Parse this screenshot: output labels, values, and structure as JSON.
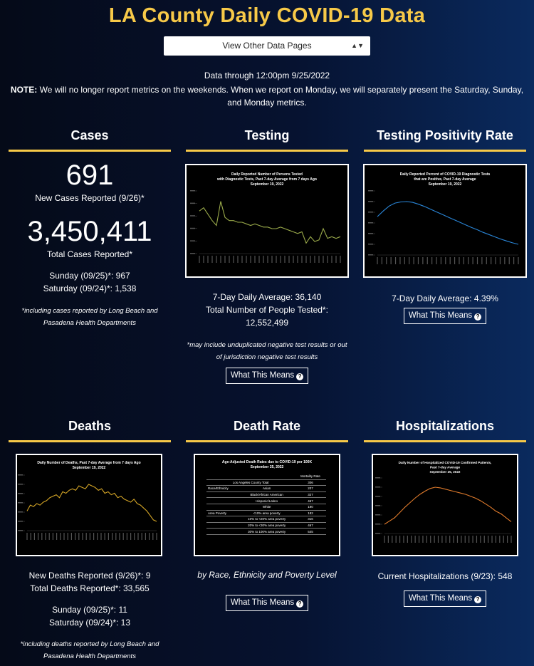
{
  "title": "LA County Daily COVID-19 Data",
  "nav_select": {
    "selected": "View Other Data Pages"
  },
  "date_line": "Data through 12:00pm 9/25/2022",
  "note": {
    "label": "NOTE:",
    "text": " We will no longer report metrics on the weekends. When we report on Monday, we will separately present the Saturday, Sunday, and Monday metrics."
  },
  "what_this_means": "What This Means",
  "cases": {
    "title": "Cases",
    "new_value": "691",
    "new_label": "New Cases Reported (9/26)*",
    "total_value": "3,450,411",
    "total_label": "Total Cases Reported*",
    "sunday": "Sunday (09/25)*: 967",
    "saturday": "Saturday (09/24)*: 1,538",
    "footnote": "*including cases reported by Long Beach and Pasadena Health Departments"
  },
  "testing": {
    "title": "Testing",
    "chart_title_1": "Daily Reported Number of Persons Tested",
    "chart_title_2": "with Diagnostic Tests, Past 7-day Average from 7 days Ago",
    "chart_title_3": "September 19, 2022",
    "avg": "7-Day Daily Average: 36,140",
    "total_label": "Total Number of People Tested*:",
    "total_value": "12,552,499",
    "footnote": "*may include unduplicated negative test results or out of jurisdiction negative test results"
  },
  "positivity": {
    "title": "Testing Positivity Rate",
    "chart_title_1": "Daily Reported Percent of COVID-19 Diagnostic Tests",
    "chart_title_2": "that are Positive, Past 7-day Average",
    "chart_title_3": "September 19, 2022",
    "avg": "7-Day Daily Average: 4.39%"
  },
  "deaths": {
    "title": "Deaths",
    "chart_title_1": "Daily Number of Deaths, Past 7-day Average from 7 days Ago",
    "chart_title_2": "September 19, 2022",
    "new": "New Deaths Reported (9/26)*: 9",
    "total": "Total Deaths Reported*: 33,565",
    "sunday": "Sunday (09/25)*: 11",
    "saturday": "Saturday (09/24)*: 13",
    "footnote": "*including deaths reported by Long Beach and Pasadena Health Departments"
  },
  "death_rate": {
    "title": "Death Rate",
    "chart_title_1": "Age-Adjusted Death Rates due to COVID-19 per 100K",
    "chart_title_2": "September 25, 2022",
    "header": "Mortality Rate",
    "total_label": "Los Angeles County Total",
    "total_value": "306",
    "rows": [
      {
        "group": "Race/Ethnicity",
        "label": "Asian",
        "value": "207"
      },
      {
        "group": "",
        "label": "Black/African American",
        "value": "327"
      },
      {
        "group": "",
        "label": "Hispanic/Latino",
        "value": "467"
      },
      {
        "group": "",
        "label": "White",
        "value": "190"
      },
      {
        "group": "Area Poverty",
        "label": "<10% area poverty",
        "value": "182"
      },
      {
        "group": "",
        "label": "10% to <20% area poverty",
        "value": "316"
      },
      {
        "group": "",
        "label": "20% to <30% area poverty",
        "value": "467"
      },
      {
        "group": "",
        "label": "30% to 100% area poverty",
        "value": "545"
      }
    ],
    "caption": "by Race, Ethnicity and Poverty Level"
  },
  "hospitalizations": {
    "title": "Hospitalizations",
    "chart_title_1": "Daily Number of Hospitalized COVID-19 Confirmed Patients,",
    "chart_title_2": "Past 7-day Average",
    "chart_title_3": "September 25, 2022",
    "current": "Current Hospitalizations (9/23): 548"
  },
  "colors": {
    "accent": "#f7c948",
    "testing_line": "#9aaa4a",
    "positivity_line": "#2a86d8",
    "deaths_line": "#d4a526",
    "hosp_line": "#e07b2c"
  },
  "chart_data": [
    {
      "type": "line",
      "title": "Daily Reported Number of Persons Tested with Diagnostic Tests, Past 7-day Average from 7 days Ago",
      "values": [
        56,
        58,
        54,
        50,
        47,
        62,
        52,
        50,
        50,
        49,
        49,
        48,
        47,
        48,
        47,
        46,
        46,
        45,
        45,
        46,
        45,
        44,
        43,
        42,
        43,
        36,
        40,
        37,
        38,
        45,
        39,
        40,
        39,
        40
      ]
    },
    {
      "type": "line",
      "title": "Daily Reported Percent of COVID-19 Diagnostic Tests that are Positive, Past 7-day Average",
      "values": [
        12,
        13.5,
        14.8,
        15.6,
        15.9,
        16,
        15.8,
        15.3,
        14.7,
        14,
        13.3,
        12.6,
        11.9,
        11.2,
        10.5,
        9.8,
        9.1,
        8.5,
        7.8,
        7.2,
        6.6,
        6,
        5.5,
        5,
        4.6
      ]
    },
    {
      "type": "line",
      "title": "Daily Number of Deaths, Past 7-day Average from 7 days Ago",
      "values": [
        10,
        14,
        13,
        15,
        14,
        16,
        17,
        19,
        20,
        21,
        19,
        23,
        22,
        24,
        25,
        24,
        27,
        26,
        25,
        28,
        27,
        26,
        24,
        25,
        22,
        23,
        21,
        22,
        19,
        20,
        18,
        17,
        16,
        18,
        15,
        14,
        12,
        10,
        7,
        4,
        3
      ]
    },
    {
      "type": "line",
      "title": "Daily Number of Hospitalized COVID-19 Confirmed Patients, Past 7-day Average",
      "values": [
        600,
        650,
        700,
        780,
        860,
        930,
        1000,
        1060,
        1110,
        1150,
        1170,
        1160,
        1140,
        1120,
        1100,
        1080,
        1060,
        1030,
        1000,
        960,
        910,
        860,
        800,
        760,
        700,
        640
      ]
    }
  ]
}
